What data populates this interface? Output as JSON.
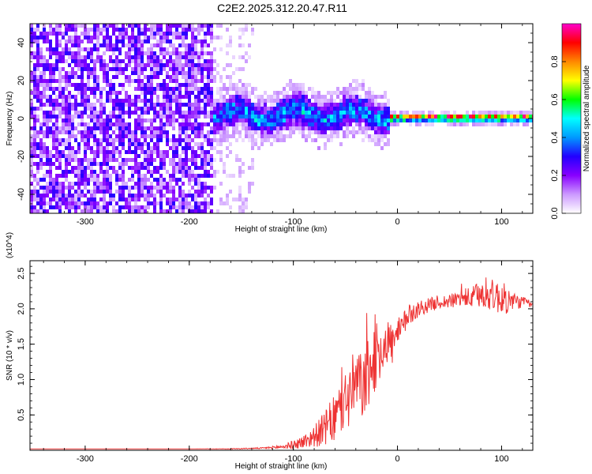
{
  "title": "C2E2.2025.312.20.47.R11",
  "chart_data": [
    {
      "type": "heatmap",
      "title": "C2E2.2025.312.20.47.R11",
      "xlabel": "Height of straight line (km)",
      "ylabel": "Frequency (Hz)",
      "xlim": [
        -353,
        130
      ],
      "ylim": [
        -50,
        50
      ],
      "x_ticks": [
        -300,
        -200,
        -100,
        0,
        100
      ],
      "x_tick_labels": [
        "-300",
        "-200",
        "-100",
        "0",
        "100"
      ],
      "y_ticks": [
        -40,
        -20,
        0,
        20,
        40
      ],
      "y_tick_labels": [
        "-40",
        "-20",
        "0",
        "20",
        "40"
      ],
      "colorbar": {
        "label": "Normalized spectral amplitude",
        "range": [
          0,
          1
        ],
        "ticks": [
          0.0,
          0.2,
          0.4,
          0.6,
          0.8
        ],
        "tick_labels": [
          "0.0",
          "0.2",
          "0.4",
          "0.6",
          "0.8"
        ],
        "colors": [
          "#ffffff",
          "#cc99ff",
          "#8800ff",
          "#2200ff",
          "#0099ff",
          "#00ffff",
          "#00ff00",
          "#ffff00",
          "#ff8800",
          "#ff0000",
          "#ff00cc"
        ]
      },
      "regions": [
        {
          "name": "broadband noise",
          "x_range": [
            -353,
            -180
          ],
          "freq_range": [
            -50,
            50
          ],
          "amplitude": 0.15
        },
        {
          "name": "fading noise",
          "x_range": [
            -180,
            -140
          ],
          "freq_range": [
            -50,
            50
          ],
          "amplitude": 0.05
        },
        {
          "name": "emerging signal",
          "x_range": [
            -180,
            -10
          ],
          "freq_center": 3,
          "freq_width": 8,
          "amplitude": 0.45
        },
        {
          "name": "stable tone",
          "x_range": [
            -10,
            130
          ],
          "freq_center": 1.5,
          "freq_width": 2,
          "amplitude": 0.95
        }
      ]
    },
    {
      "type": "line",
      "xlabel": "Height of straight line (km)",
      "ylabel": "SNR (10 * v/v)",
      "y_scale_label": "(x10^4)",
      "xlim": [
        -353,
        130
      ],
      "ylim": [
        0,
        2.68
      ],
      "x_ticks": [
        -300,
        -200,
        -100,
        0,
        100
      ],
      "x_tick_labels": [
        "-300",
        "-200",
        "-100",
        "0",
        "100"
      ],
      "y_ticks": [
        0.5,
        1.0,
        1.5,
        2.0,
        2.5
      ],
      "y_tick_labels": [
        "0.5",
        "1.0",
        "1.5",
        "2.0",
        "2.5"
      ],
      "series": [
        {
          "name": "SNR",
          "color": "#ee3333",
          "x": [
            -353,
            -300,
            -250,
            -200,
            -160,
            -130,
            -110,
            -100,
            -90,
            -80,
            -70,
            -60,
            -50,
            -45,
            -40,
            -35,
            -30,
            -25,
            -20,
            -15,
            -10,
            -5,
            0,
            5,
            10,
            20,
            30,
            40,
            50,
            60,
            70,
            80,
            90,
            100,
            110,
            120,
            130
          ],
          "values": [
            0.02,
            0.02,
            0.02,
            0.02,
            0.02,
            0.03,
            0.05,
            0.08,
            0.12,
            0.2,
            0.3,
            0.45,
            0.7,
            0.8,
            0.95,
            0.9,
            1.0,
            1.15,
            1.35,
            1.45,
            1.55,
            1.5,
            1.6,
            1.75,
            1.9,
            2.0,
            2.05,
            2.1,
            2.1,
            2.15,
            2.15,
            2.2,
            2.2,
            2.15,
            2.1,
            2.1,
            2.05
          ],
          "noise": [
            0,
            0,
            0,
            0,
            0.005,
            0.01,
            0.03,
            0.06,
            0.1,
            0.15,
            0.25,
            0.35,
            0.45,
            0.5,
            0.5,
            0.5,
            0.5,
            0.5,
            0.45,
            0.4,
            0.35,
            0.3,
            0.25,
            0.2,
            0.15,
            0.12,
            0.1,
            0.1,
            0.1,
            0.12,
            0.15,
            0.2,
            0.22,
            0.25,
            0.15,
            0.08,
            0.05
          ]
        }
      ]
    }
  ]
}
